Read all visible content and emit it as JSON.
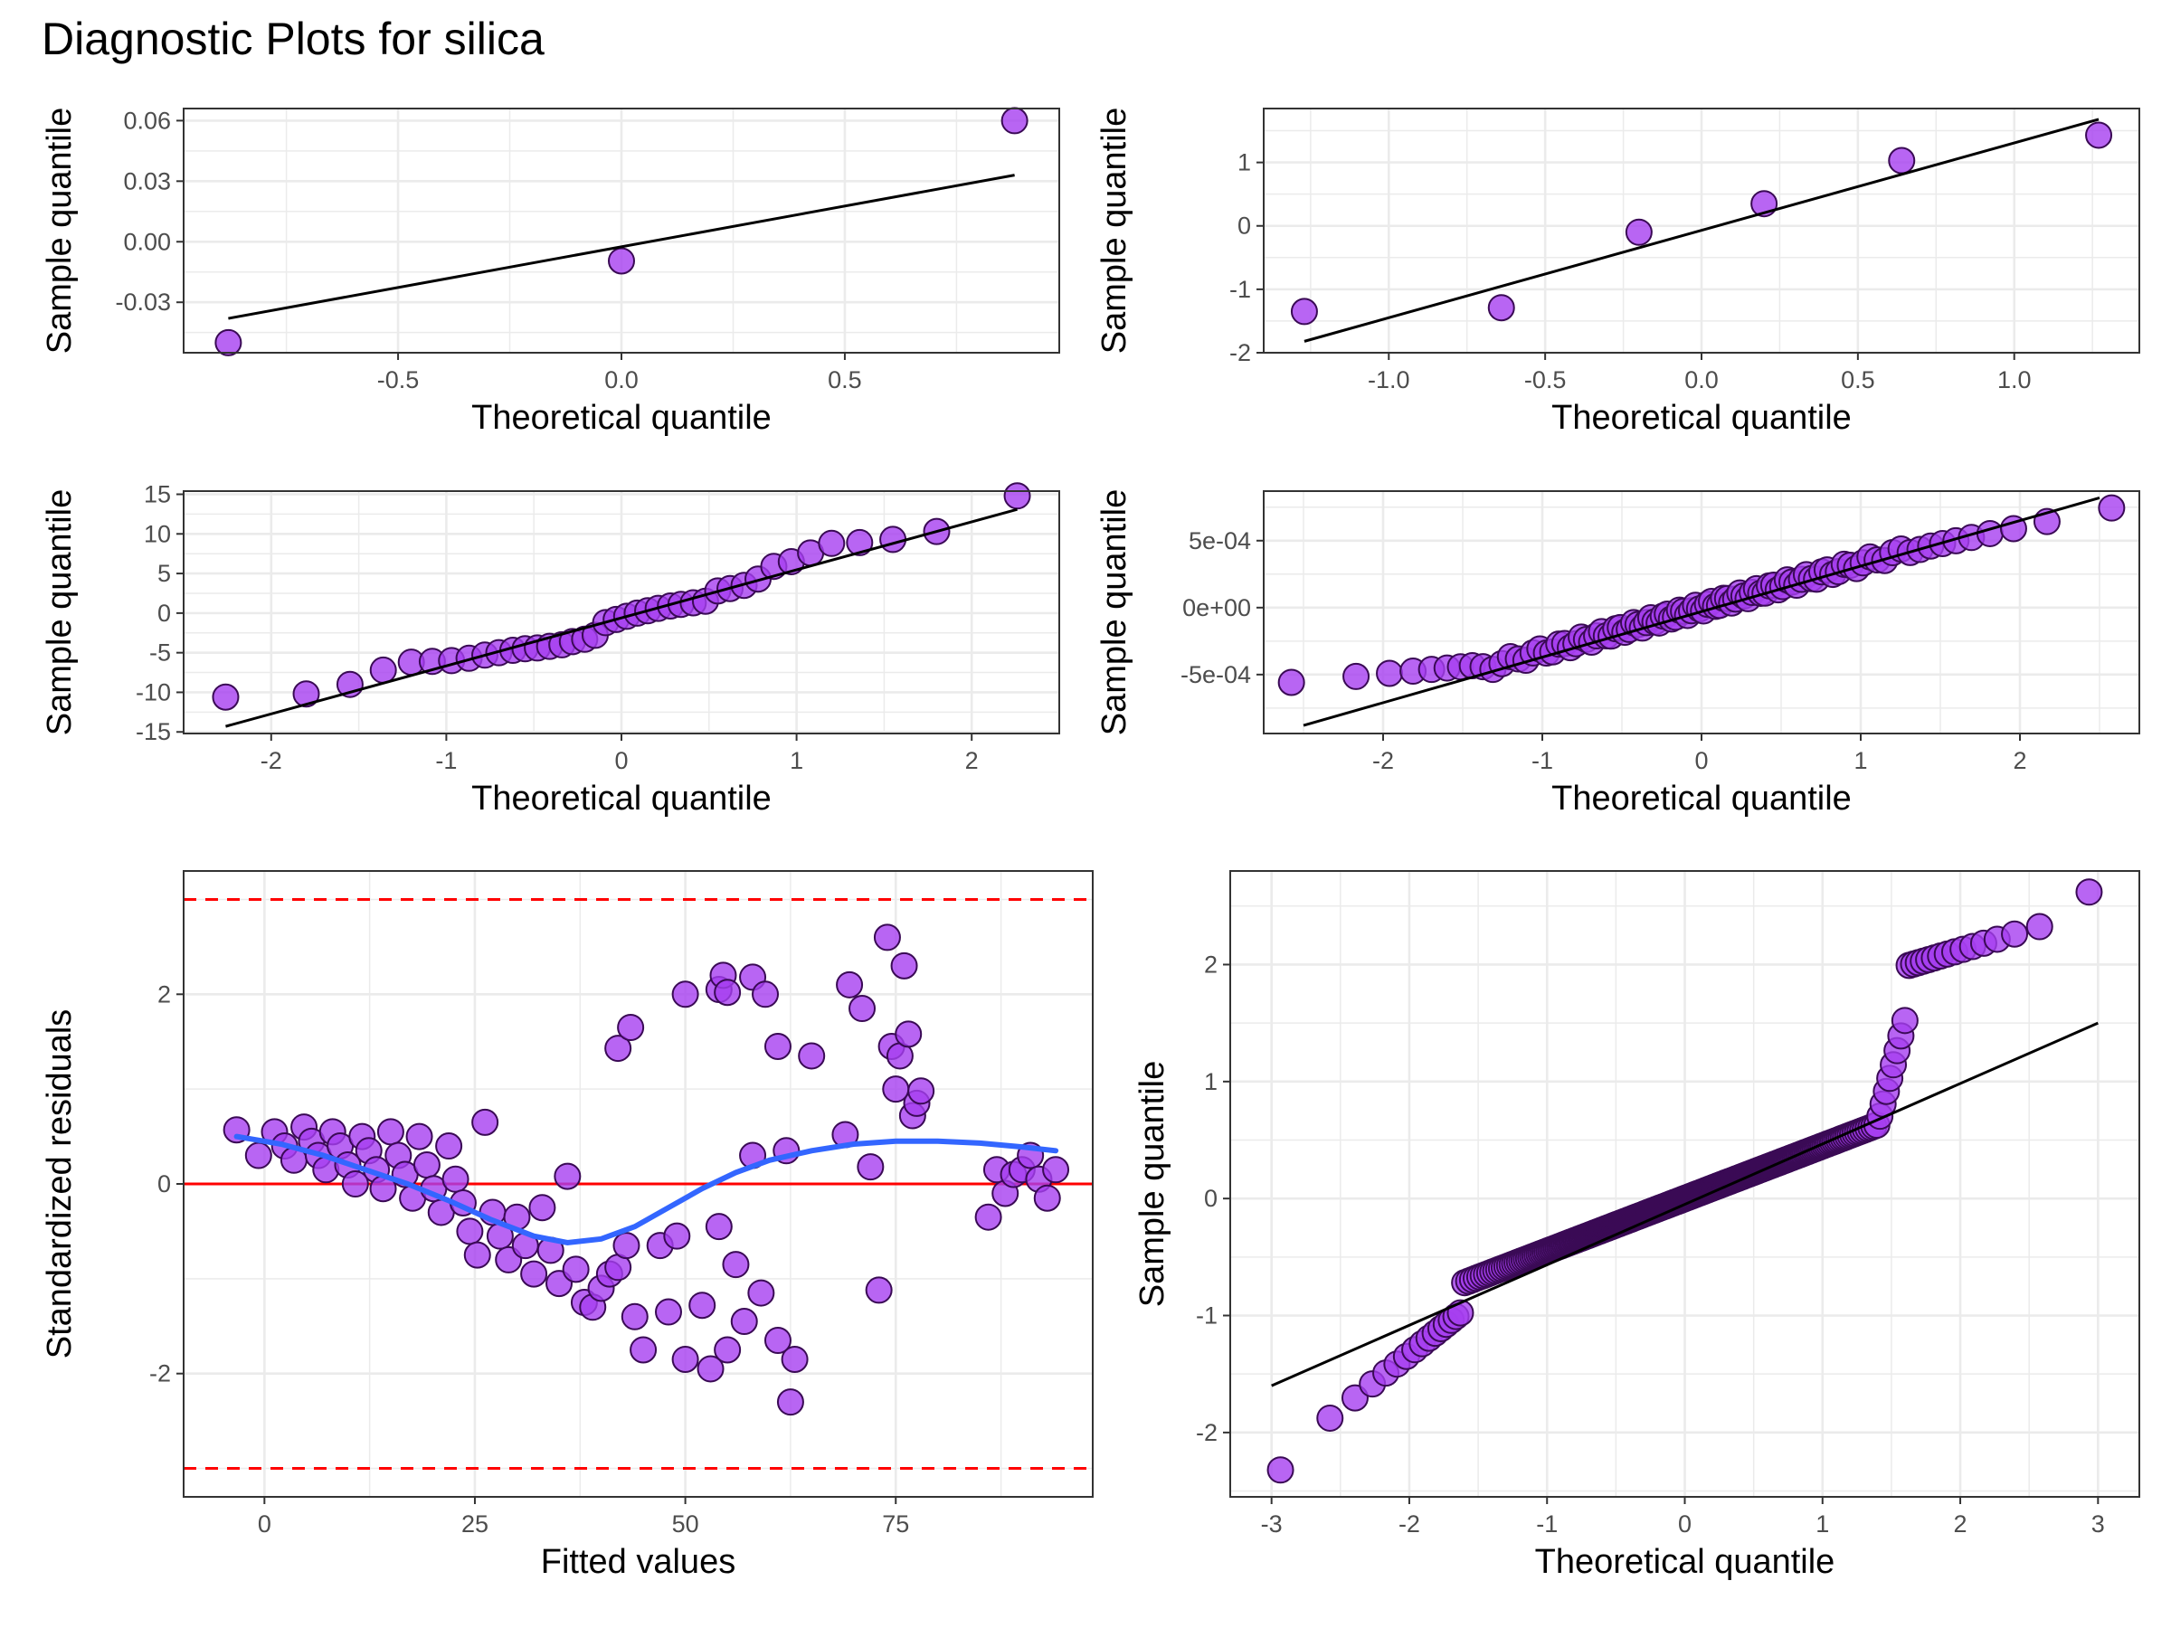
{
  "title": "Diagnostic Plots for silica",
  "colors": {
    "point_fill": "#a63ef0",
    "point_stroke": "#3a0a55",
    "ref_line": "#000000",
    "zero_line": "#ff0000",
    "bound_line": "#ff0000",
    "smooth": "#3366ff",
    "grid": "#ebebeb",
    "panel_border": "#333333"
  },
  "chart_data": [
    {
      "id": "p1",
      "type": "scatter",
      "xlabel": "Theoretical quantile",
      "ylabel": "Sample quantile",
      "xlim": [
        -0.98,
        0.98
      ],
      "ylim": [
        -0.055,
        0.066
      ],
      "xticks": [
        -0.5,
        0.0,
        0.5
      ],
      "xtick_labels": [
        "-0.5",
        "0.0",
        "0.5"
      ],
      "yticks": [
        -0.03,
        0.0,
        0.03,
        0.06
      ],
      "ytick_labels": [
        "-0.03",
        "0.00",
        "0.03",
        "0.06"
      ],
      "points": [
        [
          -0.88,
          -0.05
        ],
        [
          0.0,
          -0.0095
        ],
        [
          0.88,
          0.06
        ]
      ],
      "ref_line": [
        [
          -0.88,
          -0.038
        ],
        [
          0.88,
          0.033
        ]
      ]
    },
    {
      "id": "p2",
      "type": "scatter",
      "xlabel": "Theoretical quantile",
      "ylabel": "Sample quantile",
      "xlim": [
        -1.4,
        1.4
      ],
      "ylim": [
        -2.0,
        1.85
      ],
      "xticks": [
        -1.0,
        -0.5,
        0.0,
        0.5,
        1.0
      ],
      "xtick_labels": [
        "-1.0",
        "-0.5",
        "0.0",
        "0.5",
        "1.0"
      ],
      "yticks": [
        -2,
        -1,
        0,
        1
      ],
      "ytick_labels": [
        "-2",
        "-1",
        "0",
        "1"
      ],
      "points": [
        [
          -1.27,
          -1.35
        ],
        [
          -0.64,
          -1.29
        ],
        [
          -0.2,
          -0.1
        ],
        [
          0.2,
          0.35
        ],
        [
          0.64,
          1.03
        ],
        [
          1.27,
          1.43
        ]
      ],
      "ref_line": [
        [
          -1.27,
          -1.82
        ],
        [
          1.27,
          1.68
        ]
      ]
    },
    {
      "id": "p3",
      "type": "scatter",
      "xlabel": "Theoretical quantile",
      "ylabel": "Sample quantile",
      "xlim": [
        -2.5,
        2.5
      ],
      "ylim": [
        -15.2,
        15.4
      ],
      "xticks": [
        -2,
        -1,
        0,
        1,
        2
      ],
      "xtick_labels": [
        "-2",
        "-1",
        "0",
        "1",
        "2"
      ],
      "yticks": [
        -15,
        -10,
        -5,
        0,
        5,
        10,
        15
      ],
      "ytick_labels": [
        "-15",
        "-10",
        "-5",
        "0",
        "5",
        "10",
        "15"
      ],
      "points": [
        [
          -2.26,
          -10.6
        ],
        [
          -1.8,
          -10.2
        ],
        [
          -1.55,
          -9.0
        ],
        [
          -1.36,
          -7.2
        ],
        [
          -1.2,
          -6.2
        ],
        [
          -1.08,
          -6.1
        ],
        [
          -0.97,
          -6.0
        ],
        [
          -0.87,
          -5.7
        ],
        [
          -0.78,
          -5.3
        ],
        [
          -0.7,
          -5.0
        ],
        [
          -0.62,
          -4.7
        ],
        [
          -0.55,
          -4.5
        ],
        [
          -0.48,
          -4.4
        ],
        [
          -0.41,
          -4.2
        ],
        [
          -0.34,
          -4.0
        ],
        [
          -0.28,
          -3.6
        ],
        [
          -0.21,
          -3.3
        ],
        [
          -0.15,
          -2.8
        ],
        [
          -0.09,
          -1.2
        ],
        [
          -0.03,
          -0.8
        ],
        [
          0.03,
          -0.4
        ],
        [
          0.09,
          0.0
        ],
        [
          0.15,
          0.3
        ],
        [
          0.21,
          0.6
        ],
        [
          0.28,
          0.9
        ],
        [
          0.34,
          1.1
        ],
        [
          0.41,
          1.3
        ],
        [
          0.48,
          1.5
        ],
        [
          0.55,
          2.8
        ],
        [
          0.62,
          3.1
        ],
        [
          0.7,
          3.5
        ],
        [
          0.78,
          4.3
        ],
        [
          0.87,
          5.9
        ],
        [
          0.97,
          6.5
        ],
        [
          1.08,
          7.6
        ],
        [
          1.2,
          8.8
        ],
        [
          1.36,
          8.9
        ],
        [
          1.55,
          9.3
        ],
        [
          1.8,
          10.3
        ],
        [
          2.26,
          14.8
        ]
      ],
      "ref_line": [
        [
          -2.26,
          -14.3
        ],
        [
          2.26,
          13.1
        ]
      ]
    },
    {
      "id": "p4",
      "type": "scatter",
      "xlabel": "Theoretical quantile",
      "ylabel": "Sample quantile",
      "xticks": [
        -2,
        -1,
        0,
        1,
        2
      ],
      "xtick_labels": [
        "-2",
        "-1",
        "0",
        "1",
        "2"
      ],
      "xlim": [
        -2.75,
        2.75
      ],
      "ylim": [
        -0.00094,
        0.00087
      ],
      "yticks": [
        -0.0005,
        0.0,
        0.0005
      ],
      "ytick_labels": [
        "-5e-04",
        "0e+00",
        "5e-04"
      ],
      "points_generated": {
        "n": 100,
        "ref_slope": 0.00033,
        "ref_intercept": 0.0,
        "tail_upper": 0.00075,
        "tail_lower": -0.00055
      },
      "ref_line": [
        [
          -2.5,
          -0.00088
        ],
        [
          2.5,
          0.00082
        ]
      ]
    },
    {
      "id": "p5",
      "type": "scatter",
      "xlabel": "Fitted values",
      "ylabel": "Standardized residuals",
      "xlim": [
        -9.6,
        98.4
      ],
      "ylim": [
        -3.3,
        3.3
      ],
      "xticks": [
        0,
        25,
        50,
        75
      ],
      "xtick_labels": [
        "0",
        "25",
        "50",
        "75"
      ],
      "yticks": [
        -2,
        0,
        2
      ],
      "ytick_labels": [
        "-2",
        "0",
        "2"
      ],
      "zero_line": 0,
      "bounds": [
        -3,
        3
      ],
      "points": [
        [
          -3.3,
          0.57
        ],
        [
          -0.7,
          0.3
        ],
        [
          1.2,
          0.55
        ],
        [
          2.4,
          0.4
        ],
        [
          3.5,
          0.25
        ],
        [
          4.7,
          0.6
        ],
        [
          5.6,
          0.45
        ],
        [
          6.4,
          0.3
        ],
        [
          7.3,
          0.15
        ],
        [
          8.1,
          0.55
        ],
        [
          9.0,
          0.4
        ],
        [
          9.9,
          0.2
        ],
        [
          10.8,
          0.0
        ],
        [
          11.6,
          0.5
        ],
        [
          12.4,
          0.35
        ],
        [
          13.3,
          0.15
        ],
        [
          14.1,
          -0.05
        ],
        [
          15.0,
          0.55
        ],
        [
          15.9,
          0.3
        ],
        [
          16.7,
          0.1
        ],
        [
          17.6,
          -0.15
        ],
        [
          18.4,
          0.5
        ],
        [
          19.3,
          0.2
        ],
        [
          20.1,
          -0.05
        ],
        [
          21.0,
          -0.3
        ],
        [
          21.9,
          0.4
        ],
        [
          22.7,
          0.05
        ],
        [
          23.6,
          -0.2
        ],
        [
          24.4,
          -0.5
        ],
        [
          25.3,
          -0.75
        ],
        [
          26.2,
          0.65
        ],
        [
          27.1,
          -0.3
        ],
        [
          28.0,
          -0.55
        ],
        [
          29.0,
          -0.8
        ],
        [
          30.0,
          -0.35
        ],
        [
          31.0,
          -0.65
        ],
        [
          32.0,
          -0.95
        ],
        [
          33.0,
          -0.25
        ],
        [
          34.0,
          -0.7
        ],
        [
          35.0,
          -1.05
        ],
        [
          36.0,
          0.08
        ],
        [
          37.0,
          -0.9
        ],
        [
          38.0,
          -1.25
        ],
        [
          39.0,
          -1.3
        ],
        [
          40.0,
          -1.1
        ],
        [
          41.0,
          -0.95
        ],
        [
          42.0,
          -0.88
        ],
        [
          43.0,
          -0.65
        ],
        [
          44.0,
          -1.4
        ],
        [
          45.0,
          -1.75
        ],
        [
          47.0,
          -0.65
        ],
        [
          48.0,
          -1.35
        ],
        [
          49.0,
          -0.55
        ],
        [
          50.0,
          -1.85
        ],
        [
          52.0,
          -1.28
        ],
        [
          53.0,
          -1.95
        ],
        [
          54.0,
          -0.45
        ],
        [
          55.0,
          -1.75
        ],
        [
          56.0,
          -0.85
        ],
        [
          57.0,
          -1.45
        ],
        [
          58.0,
          0.3
        ],
        [
          59.0,
          -1.15
        ],
        [
          61.0,
          -1.65
        ],
        [
          62.0,
          0.35
        ],
        [
          62.5,
          -2.3
        ],
        [
          63.0,
          -1.85
        ],
        [
          42.0,
          1.43
        ],
        [
          43.5,
          1.65
        ],
        [
          50.0,
          2.0
        ],
        [
          54.0,
          2.05
        ],
        [
          54.5,
          2.2
        ],
        [
          55.0,
          2.02
        ],
        [
          58.0,
          2.18
        ],
        [
          59.5,
          2.0
        ],
        [
          61.0,
          1.45
        ],
        [
          65.0,
          1.35
        ],
        [
          69.0,
          0.52
        ],
        [
          69.5,
          2.1
        ],
        [
          71.0,
          1.85
        ],
        [
          72.0,
          0.18
        ],
        [
          73.0,
          -1.12
        ],
        [
          74.0,
          2.6
        ],
        [
          74.5,
          1.45
        ],
        [
          75.0,
          1.0
        ],
        [
          75.5,
          1.35
        ],
        [
          76.0,
          2.3
        ],
        [
          76.5,
          1.58
        ],
        [
          77.0,
          0.72
        ],
        [
          77.5,
          0.85
        ],
        [
          78.0,
          0.98
        ],
        [
          86.0,
          -0.35
        ],
        [
          87.0,
          0.15
        ],
        [
          88.0,
          -0.1
        ],
        [
          89.0,
          0.1
        ],
        [
          90.0,
          0.15
        ],
        [
          91.0,
          0.3
        ],
        [
          92.0,
          0.05
        ],
        [
          93.0,
          -0.15
        ],
        [
          94.0,
          0.15
        ]
      ],
      "smooth": [
        [
          -3.3,
          0.5
        ],
        [
          2,
          0.42
        ],
        [
          7,
          0.3
        ],
        [
          12,
          0.15
        ],
        [
          17,
          0.0
        ],
        [
          22,
          -0.18
        ],
        [
          27,
          -0.38
        ],
        [
          32,
          -0.55
        ],
        [
          36,
          -0.62
        ],
        [
          40,
          -0.58
        ],
        [
          44,
          -0.45
        ],
        [
          48,
          -0.25
        ],
        [
          52,
          -0.05
        ],
        [
          56,
          0.12
        ],
        [
          60,
          0.25
        ],
        [
          65,
          0.35
        ],
        [
          70,
          0.42
        ],
        [
          75,
          0.45
        ],
        [
          80,
          0.45
        ],
        [
          85,
          0.43
        ],
        [
          90,
          0.39
        ],
        [
          94,
          0.35
        ]
      ]
    },
    {
      "id": "p6",
      "type": "scatter",
      "xlabel": "Theoretical quantile",
      "ylabel": "Sample quantile",
      "xlim": [
        -3.3,
        3.3
      ],
      "ylim": [
        -2.55,
        2.8
      ],
      "xticks": [
        -3,
        -2,
        -1,
        0,
        1,
        2,
        3
      ],
      "xtick_labels": [
        "-3",
        "-2",
        "-1",
        "0",
        "1",
        "2",
        "3"
      ],
      "yticks": [
        -2,
        -1,
        0,
        1,
        2
      ],
      "ytick_labels": [
        "-2",
        "-1",
        "0",
        "1",
        "2"
      ],
      "points_generated": {
        "n": 300
      },
      "ref_line": [
        [
          -3.0,
          -1.6
        ],
        [
          3.0,
          1.5
        ]
      ]
    }
  ]
}
